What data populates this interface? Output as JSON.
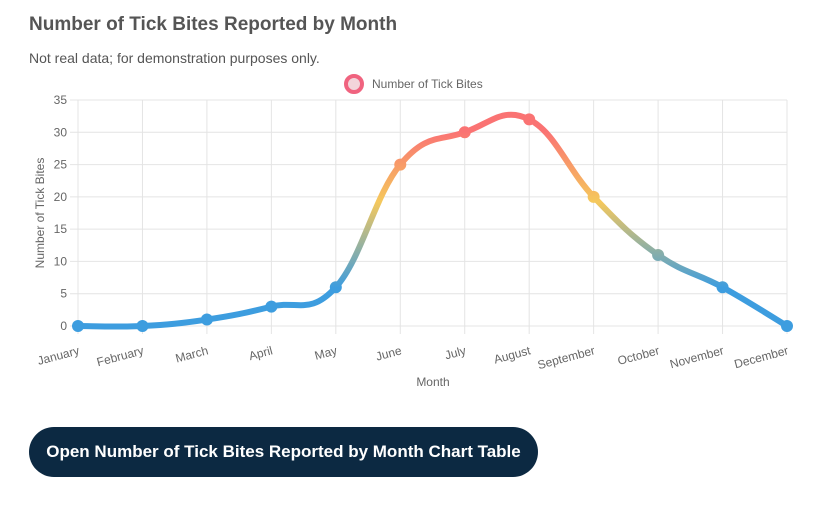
{
  "chart_data": {
    "type": "line",
    "title": "Number of Tick Bites Reported by Month",
    "subtitle": "Not real data; for demonstration purposes only.",
    "x_label": "Month",
    "y_label": "Number of Tick Bites",
    "categories": [
      "January",
      "February",
      "March",
      "April",
      "May",
      "June",
      "July",
      "August",
      "September",
      "October",
      "November",
      "December"
    ],
    "series": [
      {
        "name": "Number of Tick Bites",
        "color": "#f0637f",
        "values": [
          0,
          0,
          1,
          3,
          6,
          25,
          30,
          32,
          20,
          11,
          6,
          0
        ]
      }
    ],
    "gradient_colors": [
      "#3d9ddf",
      "#f5c85c",
      "#fa7373"
    ],
    "ylim": [
      0,
      35
    ],
    "yticks": [
      0,
      5,
      10,
      15,
      20,
      25,
      30,
      35
    ],
    "grid": true
  },
  "button": {
    "label": "Open Number of Tick Bites Reported by Month Chart Table"
  }
}
